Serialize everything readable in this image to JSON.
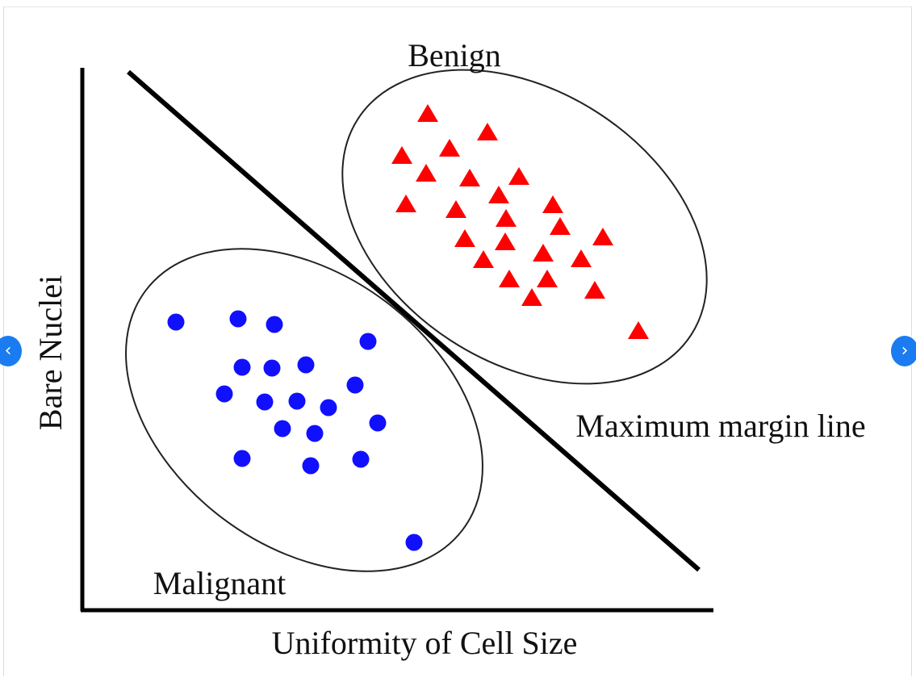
{
  "diagram": {
    "label_benign": "Benign",
    "label_malignant": "Malignant",
    "label_margin_line": "Maximum margin line",
    "axis_x_label": "Uniformity of Cell Size",
    "axis_y_label": "Bare Nuclei",
    "benign_color": "#ff0000",
    "malignant_color": "#1010ff"
  },
  "navigation": {
    "prev_icon": "‹",
    "next_icon": "›"
  }
}
